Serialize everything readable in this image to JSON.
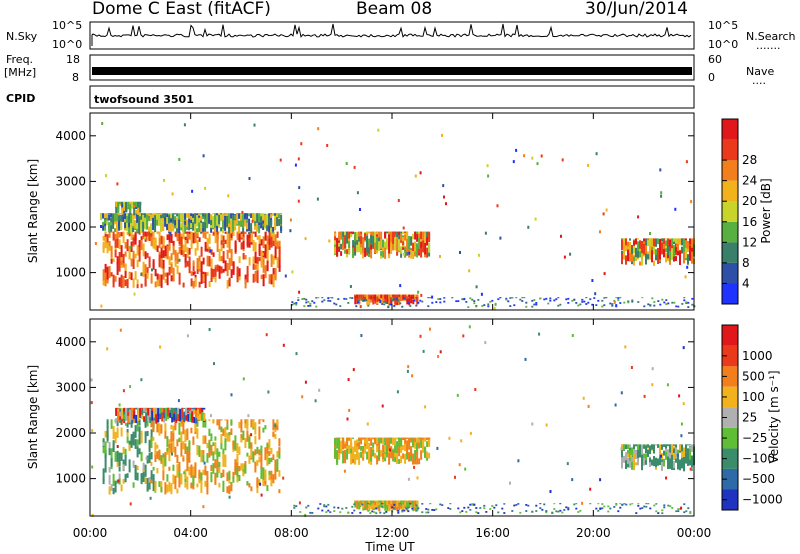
{
  "header": {
    "radar": "Dome C East (fitACF)",
    "beam": "Beam 08",
    "date": "30/Jun/2014"
  },
  "status_panels": {
    "nsky": {
      "label": "N.Sky",
      "ticks": [
        "10^5",
        "10^0"
      ],
      "right_label": "N.Search",
      "right_ticks": [
        "10^5",
        "10^0"
      ]
    },
    "freq": {
      "label_top": "Freq.",
      "label_bottom": "[MHz]",
      "ticks": [
        "18",
        "8"
      ],
      "right_label": "Nave",
      "right_ticks": [
        "60",
        "0"
      ]
    },
    "cpid": {
      "label": "CPID",
      "value": "twofsound 3501"
    }
  },
  "chart_data": [
    {
      "type": "heatmap",
      "panel": "power",
      "ylabel": "Slant Range [km]",
      "ylim": [
        180,
        4500
      ],
      "yticks": [
        1000,
        2000,
        3000,
        4000
      ],
      "xlim": [
        0,
        24
      ],
      "xticks": [
        "00:00",
        "04:00",
        "08:00",
        "12:00",
        "16:00",
        "20:00",
        "00:00"
      ],
      "colorbar": {
        "label": "Power [dB]",
        "ticks": [
          "4",
          "8",
          "12",
          "16",
          "20",
          "24",
          "28"
        ],
        "colors": [
          "#1f33ff",
          "#2d4fa8",
          "#3a7f6a",
          "#58b041",
          "#c8d42a",
          "#f2b21b",
          "#f27f1b",
          "#ea3a1b",
          "#e0181b"
        ]
      },
      "regions": [
        {
          "t": [
            0.5,
            7.5
          ],
          "r": [
            650,
            1900
          ],
          "v": "high"
        },
        {
          "t": [
            0.4,
            7.6
          ],
          "r": [
            1850,
            2300
          ],
          "v": "mid"
        },
        {
          "t": [
            1.0,
            2.0
          ],
          "r": [
            2250,
            2550
          ],
          "v": "mid"
        },
        {
          "t": [
            9.7,
            13.5
          ],
          "r": [
            1300,
            1900
          ],
          "v": "midhigh"
        },
        {
          "t": [
            10.5,
            13.0
          ],
          "r": [
            280,
            520
          ],
          "v": "high"
        },
        {
          "t": [
            21.1,
            24.0
          ],
          "r": [
            1150,
            1750
          ],
          "v": "midhigh"
        },
        {
          "t": [
            8.0,
            24.0
          ],
          "r": [
            220,
            460
          ],
          "v": "low"
        }
      ]
    },
    {
      "type": "heatmap",
      "panel": "velocity",
      "ylabel": "Slant Range [km]",
      "ylim": [
        180,
        4500
      ],
      "yticks": [
        1000,
        2000,
        3000,
        4000
      ],
      "xlim": [
        0,
        24
      ],
      "xticks": [
        "00:00",
        "04:00",
        "08:00",
        "12:00",
        "16:00",
        "20:00",
        "00:00"
      ],
      "xlabel": "Time UT",
      "colorbar": {
        "label": "Velocity [m s⁻¹]",
        "ticks": [
          "1000",
          "500",
          "100",
          "25",
          "−25",
          "−100",
          "−500",
          "−1000"
        ],
        "colors": [
          "#1f33c0",
          "#2e6aa8",
          "#3a8c6a",
          "#5fbd36",
          "#b0b0b0",
          "#f2b21b",
          "#f27f1b",
          "#ea3a1b",
          "#e0181b"
        ]
      },
      "regions": [
        {
          "t": [
            0.5,
            2.5
          ],
          "r": [
            650,
            2300
          ],
          "v": "neg-green"
        },
        {
          "t": [
            2.4,
            7.5
          ],
          "r": [
            650,
            2300
          ],
          "v": "neg-orange"
        },
        {
          "t": [
            1.0,
            4.5
          ],
          "r": [
            2200,
            2550
          ],
          "v": "mixed"
        },
        {
          "t": [
            9.7,
            13.5
          ],
          "r": [
            1300,
            1900
          ],
          "v": "neg-orange"
        },
        {
          "t": [
            10.5,
            13.0
          ],
          "r": [
            280,
            520
          ],
          "v": "neg-orange"
        },
        {
          "t": [
            21.1,
            24.0
          ],
          "r": [
            1150,
            1750
          ],
          "v": "neg-green"
        },
        {
          "t": [
            8.0,
            24.0
          ],
          "r": [
            220,
            460
          ],
          "v": "low"
        }
      ]
    }
  ]
}
